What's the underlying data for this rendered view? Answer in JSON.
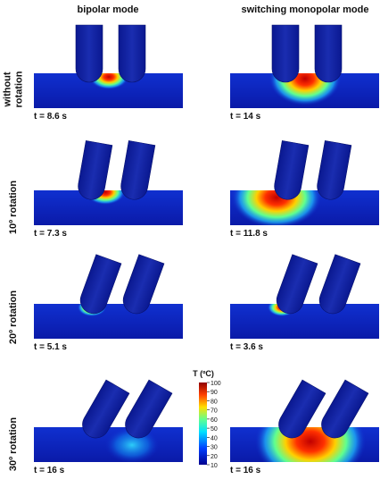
{
  "columns": [
    "bipolar mode",
    "switching monopolar mode"
  ],
  "rows": [
    {
      "label": [
        "without",
        "rotation"
      ],
      "times": [
        "t = 8.6 s",
        "t = 14 s"
      ]
    },
    {
      "label": [
        "10º rotation"
      ],
      "times": [
        "t = 7.3 s",
        "t = 11.8 s"
      ]
    },
    {
      "label": [
        "20º rotation"
      ],
      "times": [
        "t = 5.1 s",
        "t = 3.6 s"
      ]
    },
    {
      "label": [
        "30º rotation"
      ],
      "times": [
        "t = 16 s",
        "t = 16 s"
      ]
    }
  ],
  "colorbar": {
    "title": "T (ºC)",
    "ticks": [
      "100",
      "90",
      "80",
      "70",
      "60",
      "50",
      "40",
      "30",
      "20",
      "10"
    ]
  }
}
